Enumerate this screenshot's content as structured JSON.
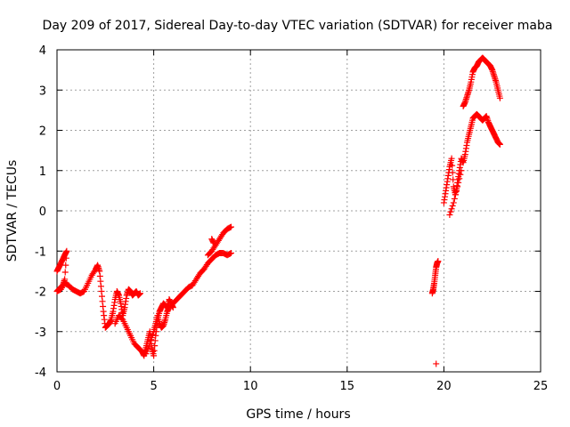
{
  "chart_data": {
    "type": "scatter",
    "title": "Day 209 of 2017, Sidereal Day-to-day VTEC variation (SDTVAR) for receiver maba",
    "xlabel": "GPS time / hours",
    "ylabel": "SDTVAR / TECUs",
    "xlim": [
      0,
      25
    ],
    "ylim": [
      -4,
      4
    ],
    "xticks": [
      0,
      5,
      10,
      15,
      20,
      25
    ],
    "yticks": [
      -4,
      -3,
      -2,
      -1,
      0,
      1,
      2,
      3,
      4
    ],
    "grid": true,
    "marker": "+",
    "color": "#ff0000",
    "series": [
      {
        "name": "segment-1",
        "x": [
          0.0,
          0.1,
          0.2,
          0.3,
          0.4,
          0.5,
          0.4,
          0.3,
          0.2,
          0.1,
          0.0,
          0.2,
          0.4,
          0.6,
          0.8,
          1.0,
          1.2,
          1.4,
          1.6,
          1.8,
          2.0,
          2.1,
          2.2,
          2.3,
          2.4,
          2.5,
          2.6,
          2.7,
          2.8,
          2.9,
          3.0,
          3.1,
          3.2,
          3.3,
          3.4,
          3.5,
          3.6,
          3.7,
          3.8,
          3.9,
          4.0,
          4.1,
          4.2,
          4.3,
          4.4,
          4.5,
          4.6,
          4.7,
          4.8,
          4.9,
          5.0,
          5.1,
          5.2,
          5.3,
          5.4,
          5.5,
          5.6,
          5.7,
          5.8,
          5.9,
          6.0
        ],
        "y": [
          -1.5,
          -1.4,
          -1.3,
          -1.2,
          -1.1,
          -1.0,
          -1.7,
          -1.85,
          -1.9,
          -1.95,
          -2.0,
          -1.95,
          -1.8,
          -1.85,
          -1.95,
          -2.0,
          -2.05,
          -2.0,
          -1.8,
          -1.6,
          -1.45,
          -1.35,
          -1.5,
          -2.0,
          -2.5,
          -2.9,
          -2.85,
          -2.8,
          -2.7,
          -2.5,
          -2.2,
          -2.0,
          -2.1,
          -2.3,
          -2.6,
          -2.4,
          -2.1,
          -1.95,
          -2.0,
          -2.1,
          -2.05,
          -2.0,
          -2.1,
          -2.05,
          -3.5,
          -3.6,
          -3.4,
          -3.2,
          -3.0,
          -3.4,
          -3.6,
          -3.1,
          -2.7,
          -2.5,
          -2.4,
          -2.3,
          -2.35,
          -2.4,
          -2.2,
          -2.3,
          -2.4
        ]
      },
      {
        "name": "segment-1-lower",
        "x": [
          3.0,
          3.2,
          3.4,
          3.6,
          3.8,
          4.0,
          4.2,
          4.4,
          4.6,
          4.8,
          5.0,
          5.1,
          5.2,
          5.3,
          5.4,
          5.5,
          5.6,
          5.7,
          5.8
        ],
        "y": [
          -2.8,
          -2.6,
          -2.7,
          -2.9,
          -3.1,
          -3.3,
          -3.4,
          -3.5,
          -3.55,
          -3.3,
          -3.0,
          -2.8,
          -2.6,
          -2.8,
          -2.9,
          -2.85,
          -2.7,
          -2.5,
          -2.4
        ]
      },
      {
        "name": "segment-2",
        "x": [
          6.0,
          6.2,
          6.4,
          6.6,
          6.8,
          7.0,
          7.2,
          7.4,
          7.6,
          7.8,
          8.0,
          8.2,
          8.4,
          8.6,
          8.8,
          9.0
        ],
        "y": [
          -2.3,
          -2.2,
          -2.1,
          -2.0,
          -1.9,
          -1.85,
          -1.7,
          -1.55,
          -1.45,
          -1.3,
          -1.2,
          -1.1,
          -1.05,
          -1.05,
          -1.1,
          -1.05
        ]
      },
      {
        "name": "segment-2-upper",
        "x": [
          7.8,
          8.0,
          8.2,
          8.4,
          8.6,
          8.8,
          9.0,
          8.1,
          8.0
        ],
        "y": [
          -1.1,
          -1.0,
          -0.85,
          -0.7,
          -0.55,
          -0.45,
          -0.4,
          -0.8,
          -0.7
        ]
      },
      {
        "name": "segment-3",
        "x": [
          19.4,
          19.45,
          19.5,
          19.55,
          19.6,
          19.65,
          19.7,
          19.6
        ],
        "y": [
          -2.05,
          -1.95,
          -1.8,
          -1.6,
          -1.4,
          -1.3,
          -1.25,
          -3.8
        ]
      },
      {
        "name": "segment-4",
        "x": [
          20.0,
          20.1,
          20.2,
          20.3,
          20.4,
          20.5,
          20.6,
          20.7,
          20.8,
          20.9,
          21.0,
          21.1,
          21.2,
          21.3,
          21.4,
          21.5,
          21.6,
          21.7,
          21.8,
          21.9,
          22.0,
          22.1,
          22.2,
          22.3,
          22.4,
          22.5,
          22.6,
          22.7,
          22.8,
          22.9
        ],
        "y": [
          0.2,
          0.5,
          0.8,
          1.1,
          1.3,
          0.6,
          0.4,
          0.7,
          1.0,
          1.3,
          1.2,
          1.4,
          1.7,
          1.9,
          2.1,
          2.3,
          2.35,
          2.4,
          2.35,
          2.3,
          2.25,
          2.3,
          2.35,
          2.2,
          2.1,
          2.0,
          1.9,
          1.8,
          1.7,
          1.65
        ]
      },
      {
        "name": "segment-4-upper",
        "x": [
          20.3,
          20.5,
          20.7,
          20.9,
          21.0,
          21.1,
          21.2,
          21.3,
          21.4,
          21.5,
          21.6,
          21.7,
          21.8,
          21.9,
          22.0,
          22.1,
          22.2,
          22.3,
          22.4,
          22.5,
          22.6,
          22.7,
          22.8,
          22.9
        ],
        "y": [
          -0.1,
          0.2,
          0.6,
          1.0,
          2.6,
          2.7,
          2.85,
          3.0,
          3.2,
          3.45,
          3.55,
          3.6,
          3.7,
          3.75,
          3.8,
          3.75,
          3.7,
          3.65,
          3.6,
          3.5,
          3.35,
          3.2,
          3.0,
          2.8
        ]
      }
    ]
  }
}
